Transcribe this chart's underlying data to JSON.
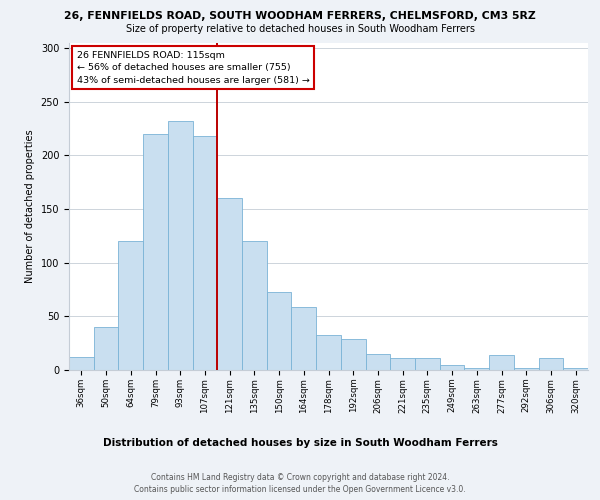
{
  "title1": "26, FENNFIELDS ROAD, SOUTH WOODHAM FERRERS, CHELMSFORD, CM3 5RZ",
  "title2": "Size of property relative to detached houses in South Woodham Ferrers",
  "xlabel": "Distribution of detached houses by size in South Woodham Ferrers",
  "ylabel": "Number of detached properties",
  "categories": [
    "36sqm",
    "50sqm",
    "64sqm",
    "79sqm",
    "93sqm",
    "107sqm",
    "121sqm",
    "135sqm",
    "150sqm",
    "164sqm",
    "178sqm",
    "192sqm",
    "206sqm",
    "221sqm",
    "235sqm",
    "249sqm",
    "263sqm",
    "277sqm",
    "292sqm",
    "306sqm",
    "320sqm"
  ],
  "values": [
    12,
    40,
    120,
    220,
    232,
    218,
    160,
    120,
    73,
    59,
    33,
    29,
    15,
    11,
    11,
    5,
    2,
    14,
    2,
    11,
    2
  ],
  "bar_color": "#c9dff0",
  "bar_edge_color": "#7ab3d6",
  "vline_x": 5.5,
  "vline_color": "#bb0000",
  "annotation_title": "26 FENNFIELDS ROAD: 115sqm",
  "annotation_line1": "← 56% of detached houses are smaller (755)",
  "annotation_line2": "43% of semi-detached houses are larger (581) →",
  "annotation_box_color": "#cc0000",
  "ylim": [
    0,
    305
  ],
  "yticks": [
    0,
    50,
    100,
    150,
    200,
    250,
    300
  ],
  "footer1": "Contains HM Land Registry data © Crown copyright and database right 2024.",
  "footer2": "Contains public sector information licensed under the Open Government Licence v3.0.",
  "background_color": "#eef2f7",
  "plot_bg_color": "#ffffff"
}
